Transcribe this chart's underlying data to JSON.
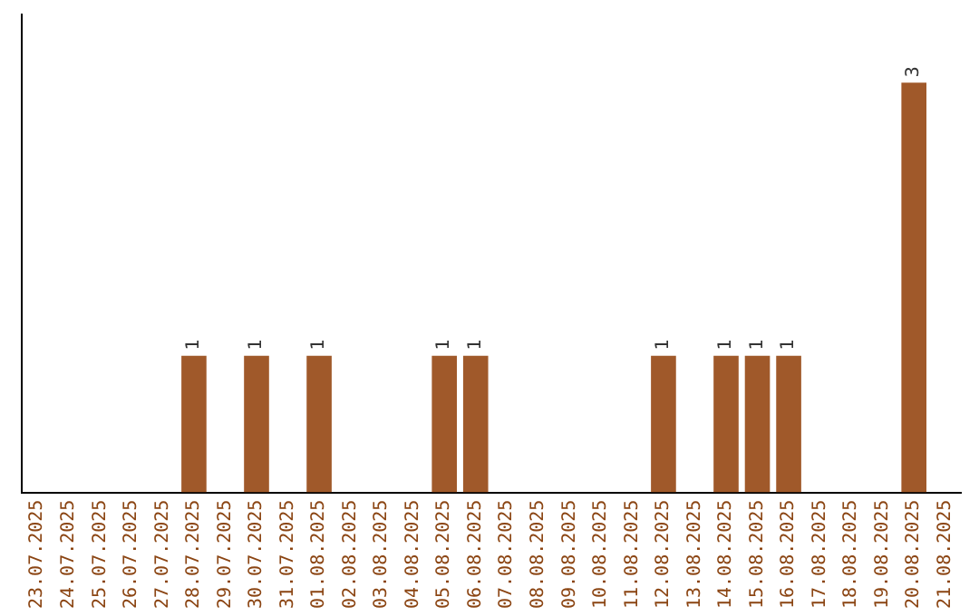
{
  "chart_data": {
    "type": "bar",
    "categories": [
      "23.07.2025",
      "24.07.2025",
      "25.07.2025",
      "26.07.2025",
      "27.07.2025",
      "28.07.2025",
      "29.07.2025",
      "30.07.2025",
      "31.07.2025",
      "01.08.2025",
      "02.08.2025",
      "03.08.2025",
      "04.08.2025",
      "05.08.2025",
      "06.08.2025",
      "07.08.2025",
      "08.08.2025",
      "09.08.2025",
      "10.08.2025",
      "11.08.2025",
      "12.08.2025",
      "13.08.2025",
      "14.08.2025",
      "15.08.2025",
      "16.08.2025",
      "17.08.2025",
      "18.08.2025",
      "19.08.2025",
      "20.08.2025",
      "21.08.2025"
    ],
    "values": [
      0,
      0,
      0,
      0,
      0,
      1,
      0,
      1,
      0,
      1,
      0,
      0,
      0,
      1,
      1,
      0,
      0,
      0,
      0,
      0,
      1,
      0,
      1,
      1,
      1,
      0,
      0,
      0,
      3,
      0
    ],
    "value_labels": [
      null,
      null,
      null,
      null,
      null,
      "1",
      null,
      "1",
      null,
      "1",
      null,
      null,
      null,
      "1",
      "1",
      null,
      null,
      null,
      null,
      null,
      "1",
      null,
      "1",
      "1",
      "1",
      null,
      null,
      null,
      "3",
      null
    ],
    "color": "#a0592a",
    "grid": false,
    "legend": false,
    "tick_labels": "x"
  }
}
